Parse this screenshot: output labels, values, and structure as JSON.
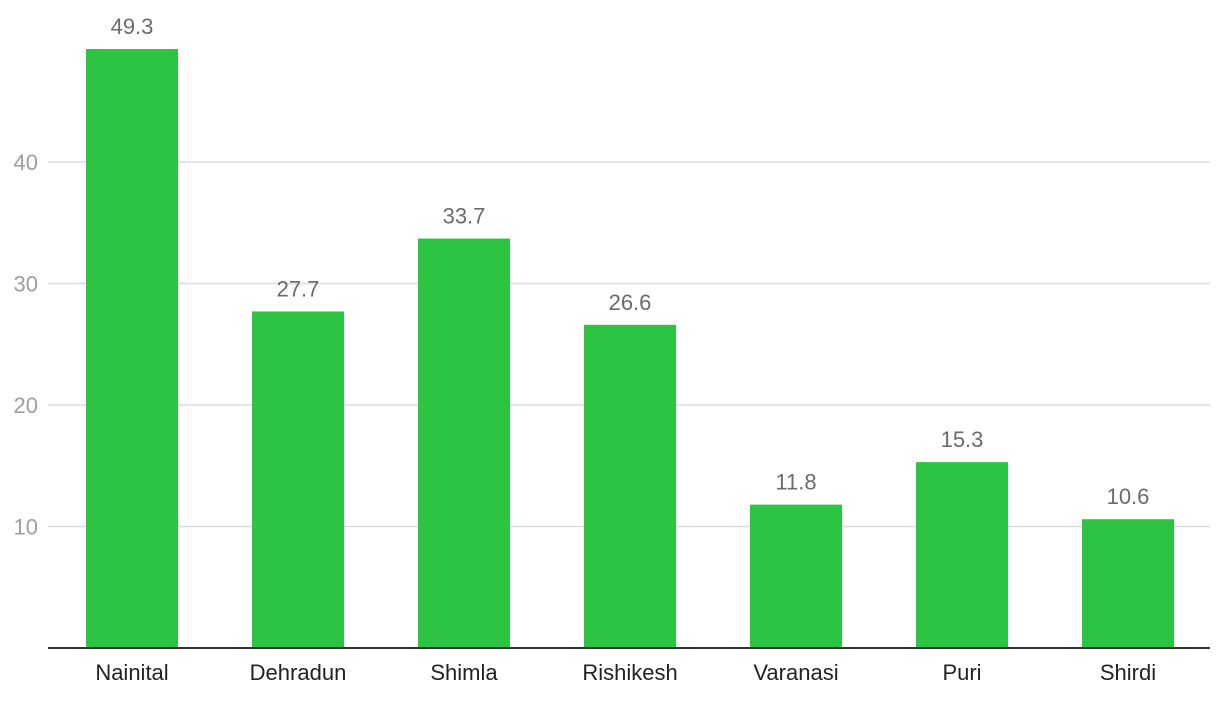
{
  "chart_data": {
    "type": "bar",
    "categories": [
      "Nainital",
      "Dehradun",
      "Shimla",
      "Rishikesh",
      "Varanasi",
      "Puri",
      "Shirdi"
    ],
    "values": [
      49.3,
      27.7,
      33.7,
      26.6,
      11.8,
      15.3,
      10.6
    ],
    "value_labels": [
      "49.3",
      "27.7",
      "33.7",
      "26.6",
      "11.8",
      "15.3",
      "10.6"
    ],
    "title": "",
    "xlabel": "",
    "ylabel": "",
    "ylim": [
      0,
      53
    ],
    "yticks": [
      10,
      20,
      30,
      40
    ],
    "ytick_labels": [
      "10",
      "20",
      "30",
      "40"
    ],
    "grid": true,
    "legend": "none",
    "colors": {
      "bar": "#2dc443",
      "grid": "#dcdcdc",
      "axis": "#333333",
      "ytick_text": "#9e9e9e",
      "xtick_text": "#222222",
      "value_text": "#6b6b6b"
    }
  }
}
